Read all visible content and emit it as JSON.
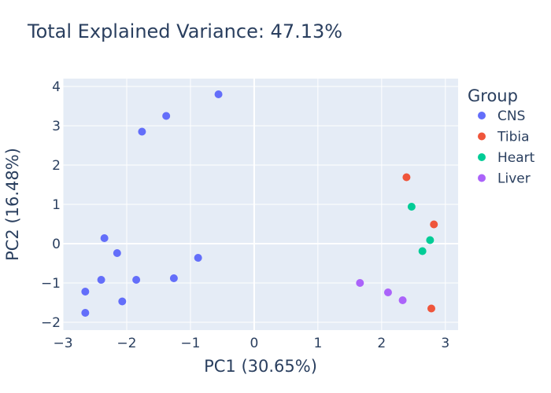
{
  "chart_data": {
    "type": "scatter",
    "title": "Total Explained Variance: 47.13%",
    "xlabel": "PC1 (30.65%)",
    "ylabel": "PC2 (16.48%)",
    "xlim": [
      -3.0,
      3.2
    ],
    "ylim": [
      -2.2,
      4.2
    ],
    "xticks": [
      -3,
      -2,
      -1,
      0,
      1,
      2,
      3
    ],
    "yticks": [
      -2,
      -1,
      0,
      1,
      2,
      3,
      4
    ],
    "xtick_labels": [
      "−3",
      "−2",
      "−1",
      "0",
      "1",
      "2",
      "3"
    ],
    "ytick_labels": [
      "−2",
      "−1",
      "0",
      "1",
      "2",
      "3",
      "4"
    ],
    "grid": true,
    "legend_title": "Group",
    "legend_position": "right",
    "series": [
      {
        "name": "CNS",
        "color": "#636efa",
        "points": [
          [
            -0.56,
            3.8
          ],
          [
            -1.38,
            3.25
          ],
          [
            -1.76,
            2.85
          ],
          [
            -2.35,
            0.14
          ],
          [
            -2.15,
            -0.24
          ],
          [
            -0.88,
            -0.36
          ],
          [
            -2.4,
            -0.92
          ],
          [
            -1.85,
            -0.92
          ],
          [
            -1.26,
            -0.88
          ],
          [
            -2.65,
            -1.22
          ],
          [
            -2.07,
            -1.47
          ],
          [
            -2.65,
            -1.76
          ]
        ]
      },
      {
        "name": "Tibia",
        "color": "#ef553b",
        "points": [
          [
            2.39,
            1.69
          ],
          [
            2.82,
            0.49
          ],
          [
            2.78,
            -1.65
          ]
        ]
      },
      {
        "name": "Heart",
        "color": "#00cc96",
        "points": [
          [
            2.47,
            0.94
          ],
          [
            2.76,
            0.09
          ],
          [
            2.64,
            -0.19
          ]
        ]
      },
      {
        "name": "Liver",
        "color": "#ab63fa",
        "points": [
          [
            1.66,
            -1.0
          ],
          [
            2.1,
            -1.24
          ],
          [
            2.33,
            -1.44
          ]
        ]
      }
    ]
  }
}
